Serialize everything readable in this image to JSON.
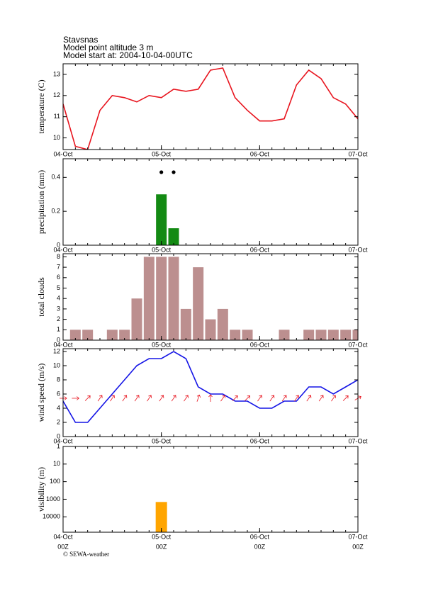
{
  "header": {
    "lines": [
      "Stavsnas",
      "Model point altitude  3 m",
      "Model start at: 2004-10-04-00UTC"
    ],
    "footer": "© SEWA-weather"
  },
  "chart_data": [
    {
      "type": "line",
      "ylabel": "temperature (C)",
      "color": "#e8141e",
      "x": [
        0,
        3,
        6,
        9,
        12,
        15,
        18,
        21,
        24,
        27,
        30,
        33,
        36,
        39,
        42,
        45,
        48,
        51,
        54,
        57,
        60,
        63,
        66,
        69,
        72
      ],
      "values": [
        11.6,
        9.6,
        9.45,
        11.3,
        12.0,
        11.9,
        11.7,
        12.0,
        11.9,
        12.3,
        12.2,
        12.3,
        13.2,
        13.3,
        11.9,
        11.3,
        10.8,
        10.8,
        10.9,
        12.5,
        13.2,
        12.8,
        11.9,
        11.6,
        10.9
      ],
      "xlim": [
        0,
        72
      ],
      "xticks": [
        {
          "value": 0,
          "label": "04-Oct"
        },
        {
          "value": 24,
          "label": "05-Oct"
        },
        {
          "value": 48,
          "label": "06-Oct"
        },
        {
          "value": 72,
          "label": "07-Oct"
        }
      ],
      "ylim": [
        9.45,
        13.5
      ],
      "yticks": [
        10,
        11,
        12,
        13
      ]
    },
    {
      "type": "bar",
      "ylabel": "precipitation (mm)",
      "color": "#138a13",
      "x": [
        0,
        3,
        6,
        9,
        12,
        15,
        18,
        21,
        24,
        27,
        30,
        33,
        36,
        39,
        42,
        45,
        48,
        51,
        54,
        57,
        60,
        63,
        66,
        69,
        72
      ],
      "values": [
        0,
        0,
        0,
        0,
        0,
        0,
        0,
        0,
        0.3,
        0.1,
        0,
        0,
        0,
        0,
        0,
        0,
        0,
        0,
        0,
        0,
        0,
        0,
        0,
        0,
        0
      ],
      "dots_x": [
        24,
        27
      ],
      "xlim": [
        0,
        72
      ],
      "xticks": [
        {
          "value": 0,
          "label": "04-Oct"
        },
        {
          "value": 24,
          "label": "05-Oct"
        },
        {
          "value": 48,
          "label": "06-Oct"
        },
        {
          "value": 72,
          "label": "07-Oct"
        }
      ],
      "ylim": [
        0,
        0.51
      ],
      "yticks": [
        0,
        0.2,
        0.4
      ]
    },
    {
      "type": "bar",
      "ylabel": "total clouds",
      "color": "#bc8f8f",
      "x": [
        0,
        3,
        6,
        9,
        12,
        15,
        18,
        21,
        24,
        27,
        30,
        33,
        36,
        39,
        42,
        45,
        48,
        51,
        54,
        57,
        60,
        63,
        66,
        69,
        72
      ],
      "values": [
        0,
        1,
        1,
        0,
        1,
        1,
        4,
        8,
        8,
        8,
        3,
        7,
        2,
        3,
        1,
        1,
        0,
        0,
        1,
        0,
        1,
        1,
        1,
        1,
        1
      ],
      "xlim": [
        0,
        72
      ],
      "xticks": [
        {
          "value": 0,
          "label": "04-Oct"
        },
        {
          "value": 24,
          "label": "05-Oct"
        },
        {
          "value": 48,
          "label": "06-Oct"
        },
        {
          "value": 72,
          "label": "07-Oct"
        }
      ],
      "ylim": [
        0,
        8.3
      ],
      "yticks": [
        0,
        1,
        2,
        3,
        4,
        5,
        6,
        7,
        8
      ]
    },
    {
      "type": "line",
      "ylabel": "wind speed (m/s)",
      "color": "#1414e6",
      "arrow_color": "#e8141e",
      "x": [
        0,
        3,
        6,
        9,
        12,
        15,
        18,
        21,
        24,
        27,
        30,
        33,
        36,
        39,
        42,
        45,
        48,
        51,
        54,
        57,
        60,
        63,
        66,
        69,
        72
      ],
      "values": [
        5,
        2,
        2,
        4,
        6,
        8,
        10,
        11,
        11,
        12,
        11,
        7,
        6,
        6,
        5,
        5,
        4,
        4,
        5,
        5,
        7,
        7,
        6,
        7,
        8
      ],
      "wind_direction": [
        270,
        270,
        225,
        215,
        215,
        215,
        215,
        215,
        215,
        215,
        215,
        200,
        180,
        215,
        225,
        225,
        215,
        215,
        215,
        215,
        215,
        215,
        215,
        225,
        240
      ],
      "xlim": [
        0,
        72
      ],
      "xticks": [
        {
          "value": 0,
          "label": "04-Oct"
        },
        {
          "value": 24,
          "label": "05-Oct"
        },
        {
          "value": 48,
          "label": "06-Oct"
        },
        {
          "value": 72,
          "label": "07-Oct"
        }
      ],
      "ylim": [
        0,
        12.4
      ],
      "yticks": [
        0,
        2,
        4,
        6,
        8,
        10,
        12
      ]
    },
    {
      "type": "bar",
      "ylabel": "visibility (m)",
      "color": "#ffa500",
      "log": true,
      "inverted": true,
      "x": [
        0,
        3,
        6,
        9,
        12,
        15,
        18,
        21,
        24,
        27,
        30,
        33,
        36,
        39,
        42,
        45,
        48,
        51,
        54,
        57,
        60,
        63,
        66,
        69,
        72
      ],
      "values": [
        75000,
        75000,
        75000,
        75000,
        75000,
        75000,
        75000,
        75000,
        1500,
        75000,
        75000,
        75000,
        75000,
        75000,
        75000,
        75000,
        75000,
        75000,
        75000,
        75000,
        75000,
        75000,
        75000,
        75000,
        75000
      ],
      "xlim": [
        0,
        72
      ],
      "xticks": [
        {
          "value": 0,
          "label": "04-Oct"
        },
        {
          "value": 24,
          "label": "05-Oct"
        },
        {
          "value": 48,
          "label": "06-Oct"
        },
        {
          "value": 72,
          "label": "07-Oct"
        }
      ],
      "xticks_sub": [
        "00Z",
        "00Z",
        "00Z",
        "00Z"
      ],
      "ylim": [
        1,
        75000
      ],
      "yticks": [
        1,
        10,
        100,
        1000,
        10000
      ]
    }
  ]
}
